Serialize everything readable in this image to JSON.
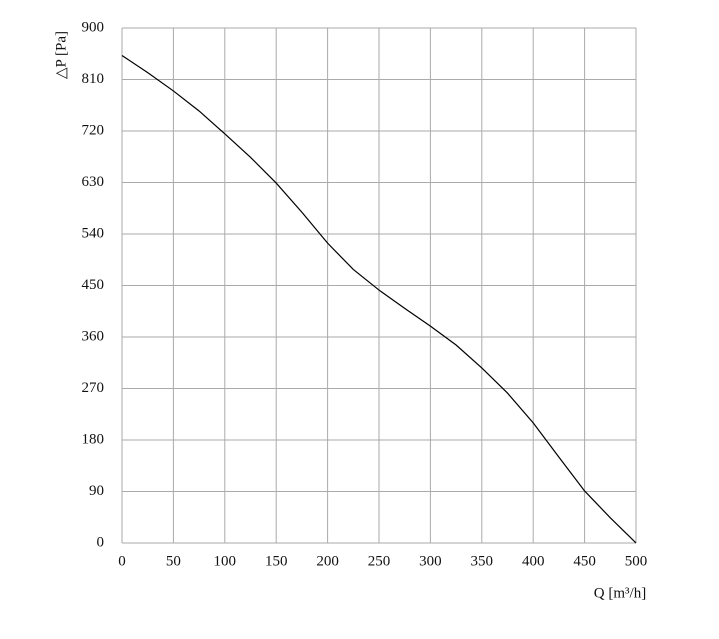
{
  "chart_data": {
    "type": "line",
    "y_label": "△P [Pa]",
    "x_label": "Q [m³/h]",
    "x": [
      0,
      25,
      50,
      75,
      100,
      125,
      150,
      175,
      200,
      225,
      250,
      275,
      300,
      325,
      350,
      375,
      400,
      425,
      450,
      475,
      500
    ],
    "series": [
      {
        "color": "#000000",
        "values": [
          852,
          822,
          790,
          755,
          715,
          674,
          629,
          578,
          524,
          478,
          442,
          410,
          379,
          346,
          306,
          262,
          210,
          150,
          91,
          44,
          0
        ]
      }
    ],
    "xlim": [
      0,
      500
    ],
    "xticks": [
      0,
      50,
      100,
      150,
      200,
      250,
      300,
      350,
      400,
      450,
      500
    ],
    "ylim": [
      0,
      900
    ],
    "yticks": [
      0,
      90,
      180,
      270,
      360,
      450,
      540,
      630,
      720,
      810,
      900
    ],
    "grid": true
  }
}
